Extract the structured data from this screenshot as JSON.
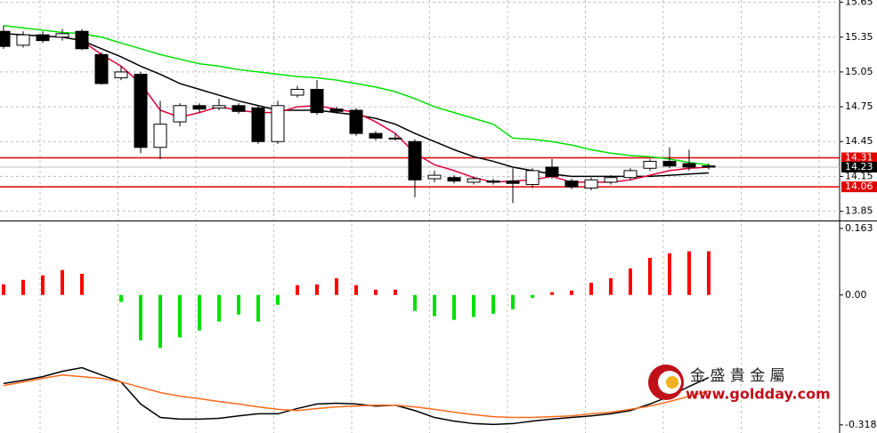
{
  "chart_data": [
    {
      "type": "candlestick",
      "open": [
        15.4,
        15.28,
        15.37,
        15.35,
        15.4,
        15.2,
        15.0,
        15.03,
        14.4,
        14.62,
        14.76,
        14.74,
        14.76,
        14.74,
        14.45,
        14.85,
        14.9,
        14.73,
        14.72,
        14.52,
        14.48,
        14.45,
        14.13,
        14.14,
        14.1,
        14.11,
        14.11,
        14.08,
        14.23,
        14.11,
        14.05,
        14.1,
        14.14,
        14.22,
        14.28,
        14.26,
        14.24
      ],
      "high": [
        15.45,
        15.4,
        15.4,
        15.42,
        15.42,
        15.22,
        15.1,
        15.05,
        14.8,
        14.78,
        14.78,
        14.82,
        14.78,
        14.76,
        14.8,
        14.93,
        14.98,
        14.75,
        14.74,
        14.54,
        14.52,
        14.47,
        14.2,
        14.16,
        14.15,
        14.13,
        14.22,
        14.22,
        14.3,
        14.13,
        14.14,
        14.16,
        14.22,
        14.3,
        14.4,
        14.38,
        14.26
      ],
      "low": [
        15.25,
        15.26,
        15.3,
        15.32,
        15.24,
        14.94,
        14.98,
        14.35,
        14.3,
        14.58,
        14.7,
        14.72,
        14.69,
        14.43,
        14.43,
        14.83,
        14.68,
        14.69,
        14.5,
        14.46,
        14.46,
        13.97,
        14.1,
        14.09,
        14.08,
        14.08,
        13.92,
        14.05,
        14.13,
        14.04,
        14.03,
        14.08,
        14.12,
        14.2,
        14.22,
        14.2,
        14.21
      ],
      "close": [
        15.27,
        15.37,
        15.32,
        15.38,
        15.25,
        14.95,
        15.05,
        14.4,
        14.6,
        14.76,
        14.73,
        14.76,
        14.71,
        14.45,
        14.76,
        14.9,
        14.7,
        14.71,
        14.52,
        14.48,
        14.48,
        14.12,
        14.16,
        14.11,
        14.13,
        14.1,
        14.09,
        14.2,
        14.15,
        14.06,
        14.12,
        14.14,
        14.2,
        14.28,
        14.24,
        14.23,
        14.23
      ],
      "series": [
        {
          "color": "#00e000",
          "values": [
            15.45,
            15.43,
            15.41,
            15.39,
            15.38,
            15.35,
            15.3,
            15.25,
            15.2,
            15.16,
            15.12,
            15.1,
            15.07,
            15.05,
            15.03,
            15.01,
            15.0,
            14.98,
            14.95,
            14.92,
            14.88,
            14.82,
            14.75,
            14.7,
            14.65,
            14.6,
            14.48,
            14.47,
            14.45,
            14.42,
            14.38,
            14.35,
            14.33,
            14.32,
            14.3,
            14.27,
            14.25
          ]
        },
        {
          "color": "#000000",
          "values": [
            15.38,
            15.37,
            15.36,
            15.35,
            15.32,
            15.25,
            15.18,
            15.1,
            15.03,
            14.95,
            14.9,
            14.85,
            14.8,
            14.76,
            14.72,
            14.72,
            14.72,
            14.7,
            14.68,
            14.65,
            14.6,
            14.52,
            14.45,
            14.38,
            14.32,
            14.28,
            14.23,
            14.2,
            14.17,
            14.15,
            14.15,
            14.15,
            14.15,
            14.15,
            14.16,
            14.17,
            14.18
          ]
        },
        {
          "color": "#e0003a",
          "values": [
            null,
            null,
            null,
            null,
            15.32,
            15.2,
            15.1,
            14.95,
            14.72,
            14.66,
            14.7,
            14.75,
            14.72,
            14.7,
            14.7,
            14.75,
            14.76,
            14.73,
            14.7,
            14.62,
            14.52,
            14.35,
            14.25,
            14.2,
            14.14,
            14.1,
            14.11,
            14.12,
            14.15,
            14.1,
            14.1,
            14.1,
            14.12,
            14.16,
            14.2,
            14.22,
            14.23
          ]
        }
      ],
      "hlines": [
        {
          "value": 14.31,
          "color": "#e00000"
        },
        {
          "value": 14.06,
          "color": "#e00000"
        }
      ],
      "last_price": 14.23,
      "ylim": [
        13.77,
        15.67
      ],
      "yticks": [
        15.65,
        15.35,
        15.05,
        14.75,
        14.45,
        14.15,
        13.85
      ],
      "grid": true
    },
    {
      "type": "histogram",
      "values": [
        0.026,
        0.037,
        0.048,
        0.061,
        0.052,
        0,
        -0.017,
        -0.111,
        -0.13,
        -0.104,
        -0.087,
        -0.065,
        -0.048,
        -0.065,
        -0.024,
        0.024,
        0.026,
        0.041,
        0.024,
        0.013,
        0.013,
        -0.039,
        -0.052,
        -0.061,
        -0.054,
        -0.046,
        -0.035,
        -0.007,
        0.007,
        0.011,
        0.03,
        0.041,
        0.065,
        0.091,
        0.102,
        0.107,
        0.107
      ],
      "up_color": "#ff0000",
      "down_color": "#00e000",
      "series": [
        {
          "color": "#000000",
          "values": [
            -0.217,
            -0.209,
            -0.2,
            -0.187,
            -0.178,
            -0.196,
            -0.213,
            -0.267,
            -0.3,
            -0.304,
            -0.304,
            -0.302,
            -0.296,
            -0.291,
            -0.291,
            -0.278,
            -0.267,
            -0.265,
            -0.267,
            -0.272,
            -0.27,
            -0.283,
            -0.3,
            -0.309,
            -0.315,
            -0.317,
            -0.315,
            -0.309,
            -0.304,
            -0.3,
            -0.296,
            -0.291,
            -0.283,
            -0.267,
            -0.248,
            -0.224,
            -0.202
          ]
        },
        {
          "color": "#ff6a1a",
          "values": [
            -0.222,
            -0.213,
            -0.204,
            -0.196,
            -0.2,
            -0.204,
            -0.213,
            -0.226,
            -0.239,
            -0.248,
            -0.254,
            -0.261,
            -0.267,
            -0.274,
            -0.28,
            -0.283,
            -0.278,
            -0.274,
            -0.272,
            -0.27,
            -0.27,
            -0.274,
            -0.28,
            -0.287,
            -0.293,
            -0.298,
            -0.3,
            -0.3,
            -0.298,
            -0.296,
            -0.291,
            -0.287,
            -0.28,
            -0.272,
            -0.261,
            -0.248,
            -0.235
          ]
        }
      ],
      "ylim": [
        -0.338,
        0.178
      ],
      "yticks": [
        0.163,
        {
          "value": 0,
          "label": "0.00"
        },
        -0.318
      ]
    }
  ],
  "watermark": {
    "title": "金 盛 貴 金 屬",
    "url": "www.goldday.com"
  }
}
